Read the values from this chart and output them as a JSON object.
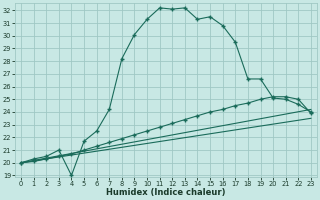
{
  "xlabel": "Humidex (Indice chaleur)",
  "xlim": [
    -0.5,
    23.5
  ],
  "ylim": [
    18.85,
    32.6
  ],
  "yticks": [
    19,
    20,
    21,
    22,
    23,
    24,
    25,
    26,
    27,
    28,
    29,
    30,
    31,
    32
  ],
  "xticks": [
    0,
    1,
    2,
    3,
    4,
    5,
    6,
    7,
    8,
    9,
    10,
    11,
    12,
    13,
    14,
    15,
    16,
    17,
    18,
    19,
    20,
    21,
    22,
    23
  ],
  "bg_color": "#c8e8e4",
  "grid_color": "#a0c8c4",
  "line_color": "#1a6b5a",
  "line1_x": [
    0,
    1,
    2,
    3,
    4,
    5,
    6,
    7,
    8,
    9,
    10,
    11,
    12,
    13,
    14,
    15,
    16,
    17,
    18,
    19,
    20,
    21,
    22,
    23
  ],
  "line1_y": [
    20.0,
    20.3,
    20.5,
    21.0,
    19.0,
    21.7,
    22.5,
    24.2,
    28.2,
    30.1,
    31.3,
    32.2,
    32.1,
    32.2,
    31.3,
    31.5,
    30.8,
    29.5,
    26.6,
    26.6,
    25.1,
    25.0,
    24.6,
    24.0
  ],
  "line2_x": [
    0,
    1,
    2,
    3,
    4,
    5,
    6,
    7,
    8,
    9,
    10,
    11,
    12,
    13,
    14,
    15,
    16,
    17,
    18,
    19,
    20,
    21,
    22,
    23
  ],
  "line2_y": [
    20.0,
    20.1,
    20.3,
    20.5,
    20.7,
    21.0,
    21.3,
    21.6,
    21.9,
    22.2,
    22.5,
    22.8,
    23.1,
    23.4,
    23.7,
    24.0,
    24.2,
    24.5,
    24.7,
    25.0,
    25.2,
    25.2,
    25.0,
    23.9
  ],
  "line3_x": [
    0,
    23
  ],
  "line3_y": [
    20.0,
    24.2
  ],
  "line4_x": [
    0,
    23
  ],
  "line4_y": [
    20.0,
    23.5
  ]
}
